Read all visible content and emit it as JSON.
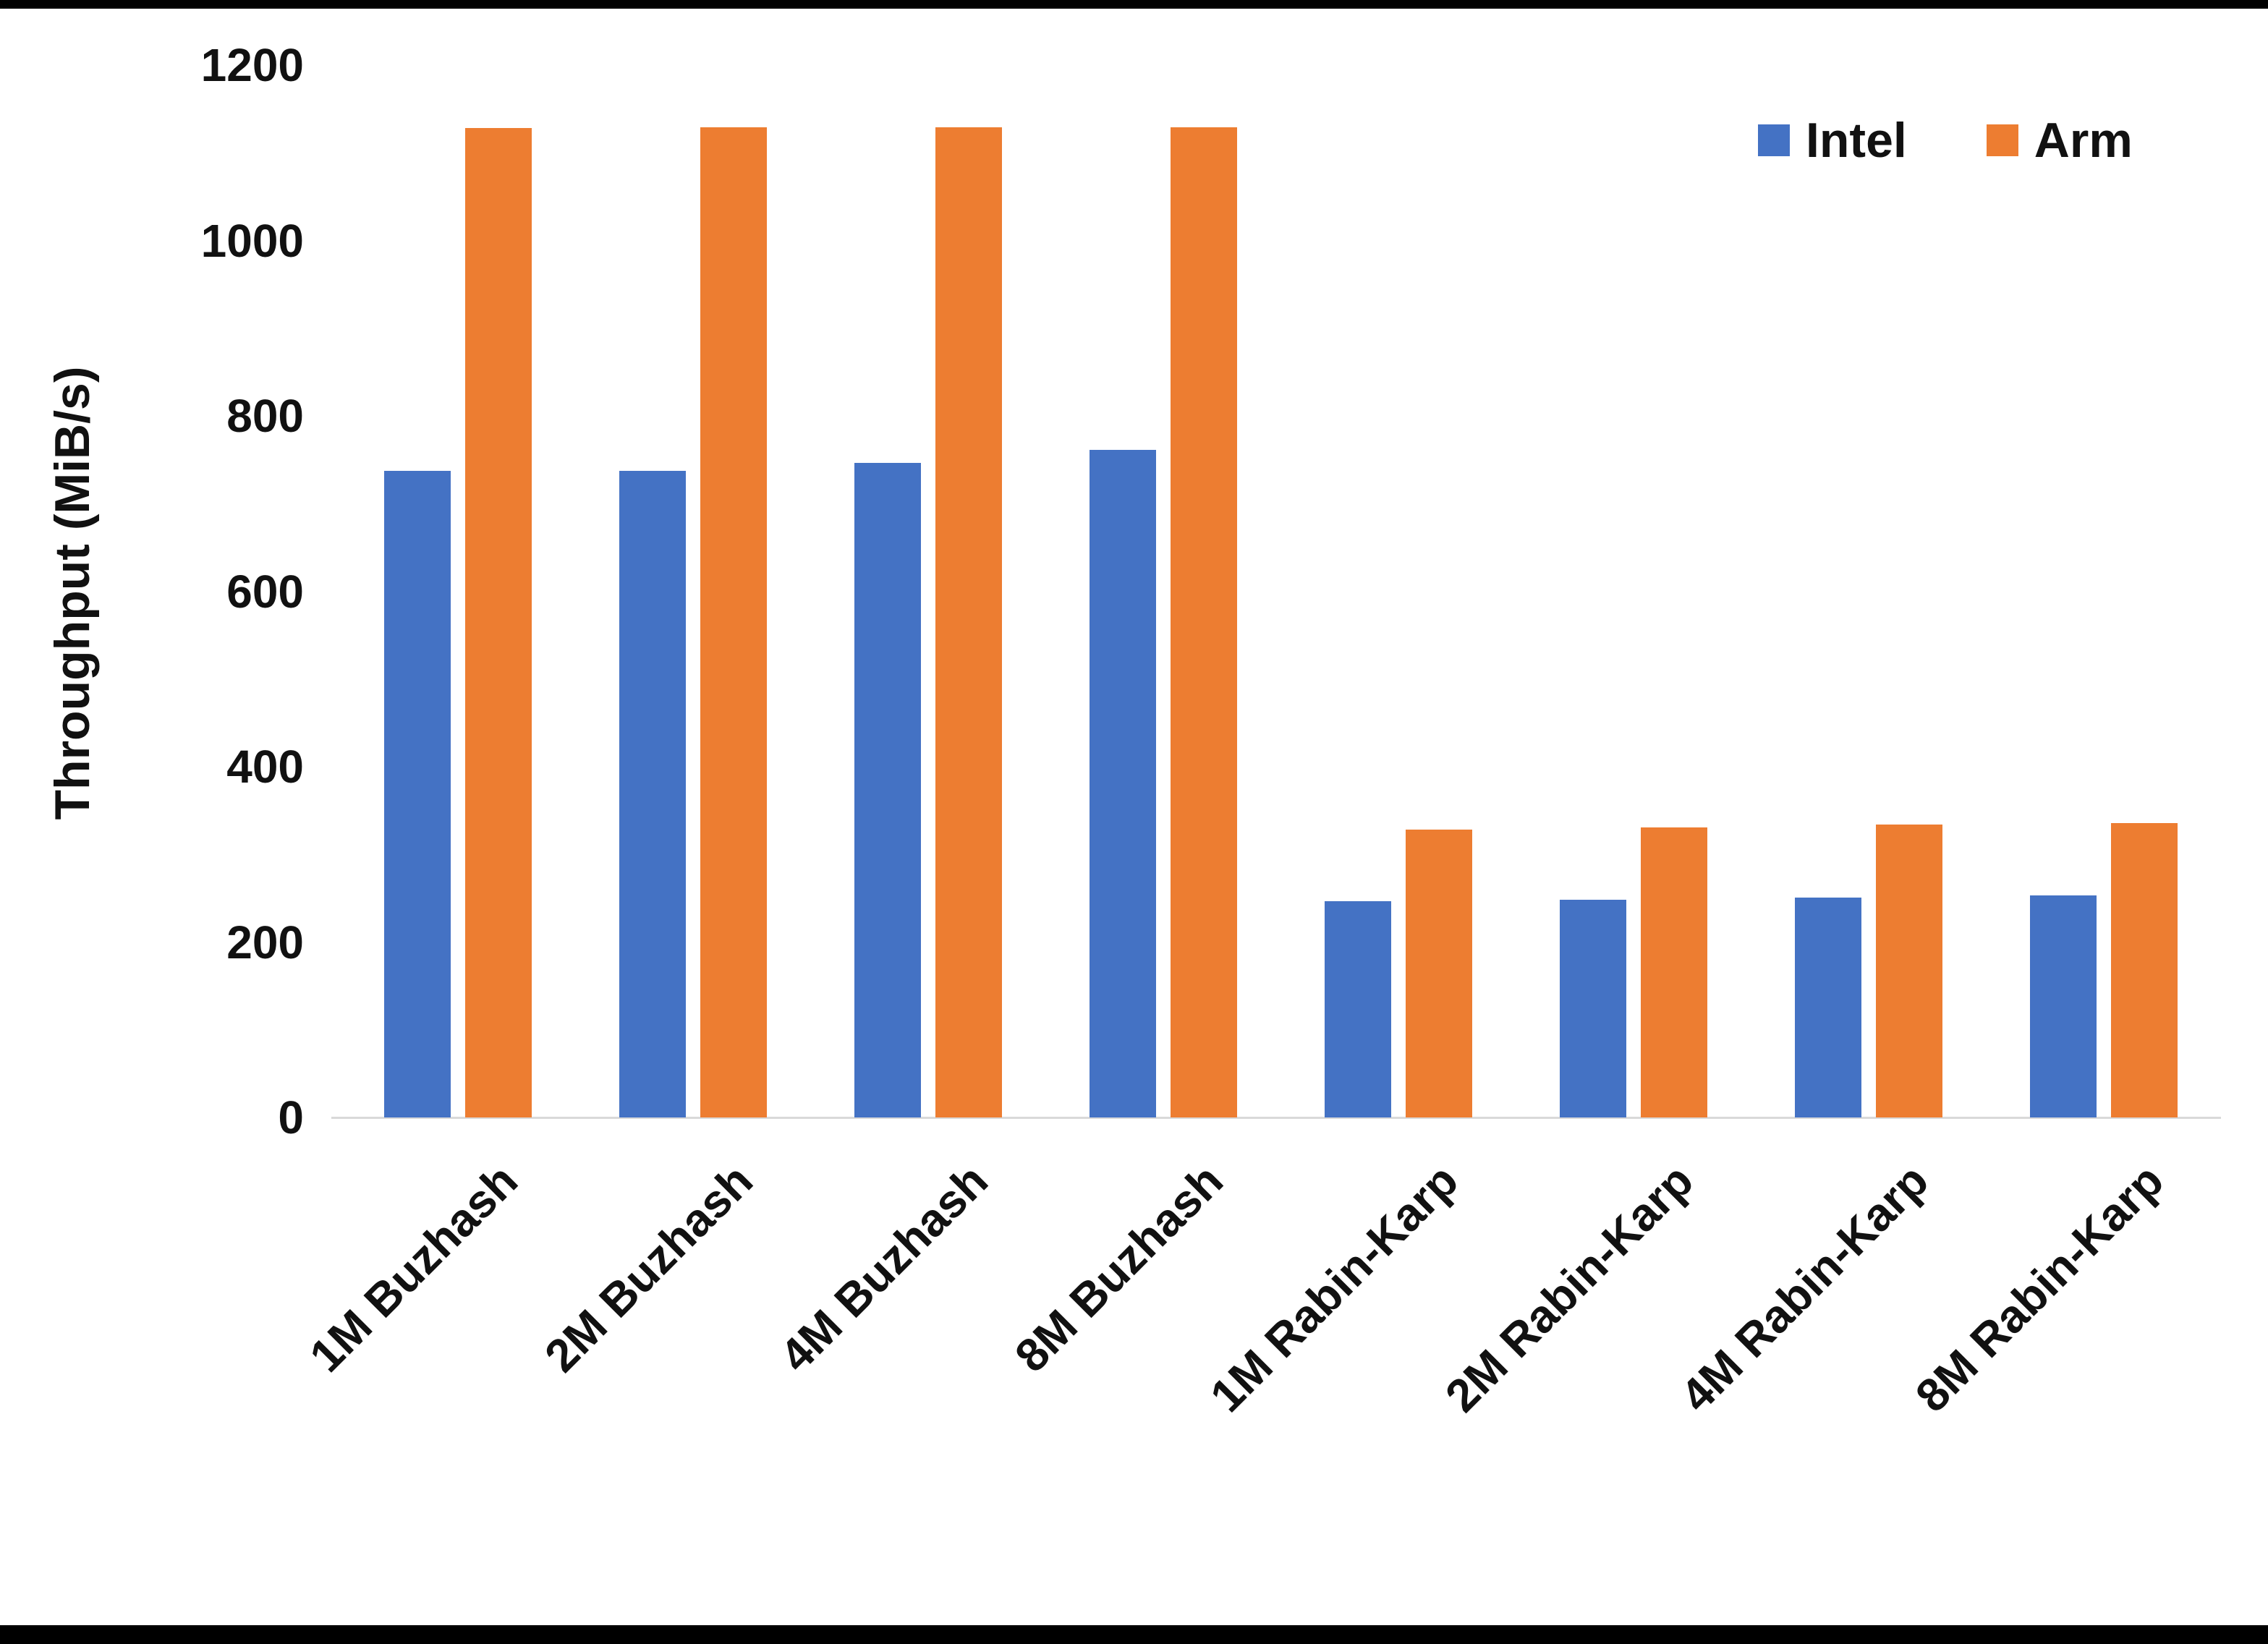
{
  "page": {
    "background": "#ffffff",
    "border_color": "#000000"
  },
  "chart_data": {
    "type": "bar",
    "title": "",
    "xlabel": "",
    "ylabel": "Throughput (MiB/s)",
    "ylim": [
      0,
      1200
    ],
    "yticks": [
      0,
      200,
      400,
      600,
      800,
      1000,
      1200
    ],
    "grid": false,
    "legend_position": "top-right",
    "axis_line_color": "#d9d9d9",
    "categories": [
      "1M Buzhash",
      "2M Buzhash",
      "4M Buzhash",
      "8M Buzhash",
      "1M Rabin-Karp",
      "2M Rabin-Karp",
      "4M Rabin-Karp",
      "8M Rabin-Karp"
    ],
    "series": [
      {
        "name": "Intel",
        "color": "#4472C4",
        "values": [
          737,
          737,
          746,
          761,
          247,
          248,
          251,
          253
        ]
      },
      {
        "name": "Arm",
        "color": "#ED7D31",
        "values": [
          1128,
          1129,
          1129,
          1129,
          328,
          331,
          334,
          336
        ]
      }
    ]
  }
}
